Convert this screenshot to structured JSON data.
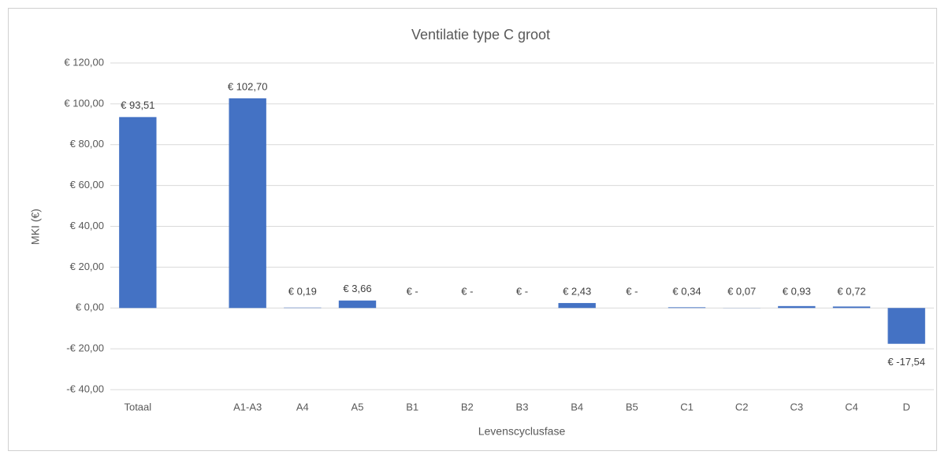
{
  "chart_data": {
    "type": "bar",
    "title": "Ventilatie type C groot",
    "x_label": "Levenscyclusfase",
    "y_label": "MKI (€)",
    "categories": [
      "Totaal",
      null,
      "A1-A3",
      "A4",
      "A5",
      "B1",
      "B2",
      "B3",
      "B4",
      "B5",
      "C1",
      "C2",
      "C3",
      "C4",
      "D"
    ],
    "values": [
      93.51,
      null,
      102.7,
      0.19,
      3.66,
      0,
      0,
      0,
      2.43,
      0,
      0.34,
      0.07,
      0.93,
      0.72,
      -17.54
    ],
    "value_labels": [
      "€ 93,51",
      null,
      "€ 102,70",
      "€ 0,19",
      "€ 3,66",
      "€ -",
      "€ -",
      "€ -",
      "€ 2,43",
      "€ -",
      "€ 0,34",
      "€ 0,07",
      "€ 0,93",
      "€ 0,72",
      "€ -17,54"
    ],
    "color": "#4472c4",
    "ylim": [
      -40,
      120
    ],
    "yticks": [
      {
        "value": -40,
        "label": "-€ 40,00"
      },
      {
        "value": -20,
        "label": "-€ 20,00"
      },
      {
        "value": 0,
        "label": "€ 0,00"
      },
      {
        "value": 20,
        "label": "€ 20,00"
      },
      {
        "value": 40,
        "label": "€ 40,00"
      },
      {
        "value": 60,
        "label": "€ 60,00"
      },
      {
        "value": 80,
        "label": "€ 80,00"
      },
      {
        "value": 100,
        "label": "€ 100,00"
      },
      {
        "value": 120,
        "label": "€ 120,00"
      }
    ],
    "grid": true
  }
}
